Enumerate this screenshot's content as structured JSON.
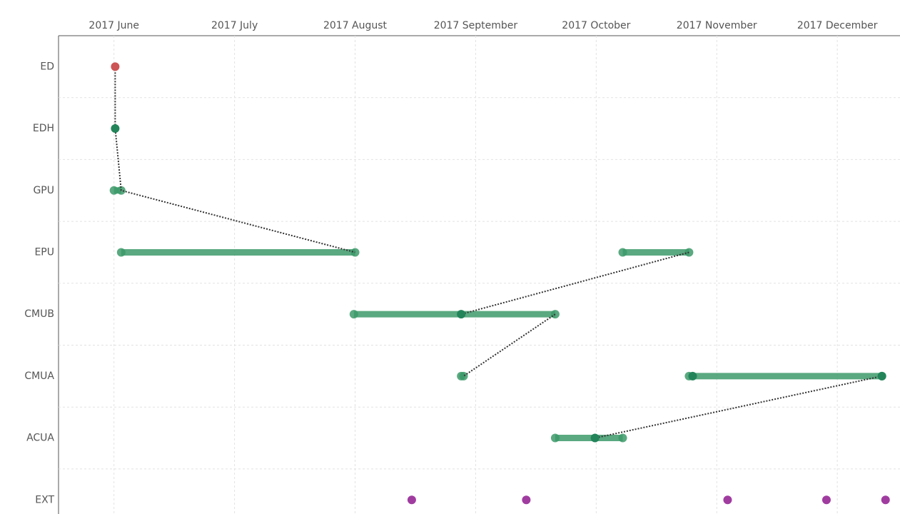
{
  "chart_data": {
    "type": "timeline",
    "categories": [
      "ED",
      "EDH",
      "GPU",
      "EPU",
      "CMUB",
      "CMUA",
      "ACUA",
      "EXT"
    ],
    "xlim": [
      5.54,
      12.52
    ],
    "xticks": [
      {
        "value": 6,
        "label": "2017 June"
      },
      {
        "value": 7,
        "label": "2017 July"
      },
      {
        "value": 8,
        "label": "2017 August"
      },
      {
        "value": 9,
        "label": "2017 September"
      },
      {
        "value": 10,
        "label": "2017 October"
      },
      {
        "value": 11,
        "label": "2017 November"
      },
      {
        "value": 12,
        "label": "2017 December"
      }
    ],
    "grid": true,
    "range_color": "#3d9a6a",
    "connector_color": "#333333",
    "ranges": [
      {
        "category": "GPU",
        "start": 6.0,
        "end": 6.06
      },
      {
        "category": "EPU",
        "start": 6.06,
        "end": 8.0
      },
      {
        "category": "EPU",
        "start": 10.22,
        "end": 10.77
      },
      {
        "category": "CMUB",
        "start": 7.99,
        "end": 9.66
      },
      {
        "category": "CMUA",
        "start": 8.88,
        "end": 8.9
      },
      {
        "category": "CMUA",
        "start": 10.77,
        "end": 12.37
      },
      {
        "category": "ACUA",
        "start": 9.66,
        "end": 10.22
      }
    ],
    "points": [
      {
        "category": "ED",
        "x": 6.01,
        "color": "#cd5555"
      },
      {
        "category": "EDH",
        "x": 6.01,
        "color": "#23845a"
      },
      {
        "category": "CMUB",
        "x": 8.88,
        "color": "#23845a"
      },
      {
        "category": "CMUA",
        "x": 10.8,
        "color": "#23845a"
      },
      {
        "category": "CMUA",
        "x": 12.37,
        "color": "#23845a"
      },
      {
        "category": "ACUA",
        "x": 9.99,
        "color": "#23845a"
      },
      {
        "category": "EXT",
        "x": 8.47,
        "color": "#a03ca0"
      },
      {
        "category": "EXT",
        "x": 9.42,
        "color": "#a03ca0"
      },
      {
        "category": "EXT",
        "x": 11.09,
        "color": "#a03ca0"
      },
      {
        "category": "EXT",
        "x": 11.91,
        "color": "#a03ca0"
      },
      {
        "category": "EXT",
        "x": 12.4,
        "color": "#a03ca0"
      }
    ],
    "connectors": [
      {
        "x": [
          6.01,
          6.01,
          6.06,
          8.0
        ],
        "y": [
          "ED",
          "EDH",
          "GPU",
          "EPU"
        ]
      },
      {
        "x": [
          10.77,
          8.88
        ],
        "y": [
          "EPU",
          "CMUB"
        ]
      },
      {
        "x": [
          9.66,
          8.9
        ],
        "y": [
          "CMUB",
          "CMUA"
        ]
      },
      {
        "x": [
          12.37,
          9.99
        ],
        "y": [
          "CMUA",
          "ACUA"
        ]
      }
    ]
  }
}
